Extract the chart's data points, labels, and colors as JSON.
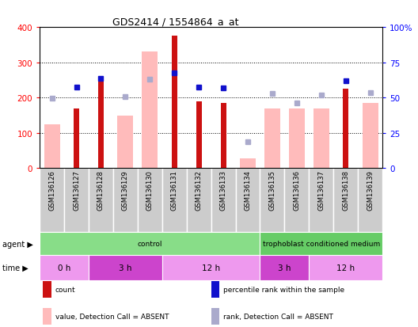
{
  "title": "GDS2414 / 1554864_a_at",
  "samples": [
    "GSM136126",
    "GSM136127",
    "GSM136128",
    "GSM136129",
    "GSM136130",
    "GSM136131",
    "GSM136132",
    "GSM136133",
    "GSM136134",
    "GSM136135",
    "GSM136136",
    "GSM136137",
    "GSM136138",
    "GSM136139"
  ],
  "count": [
    null,
    170,
    260,
    null,
    null,
    375,
    190,
    185,
    null,
    null,
    null,
    null,
    225,
    null
  ],
  "count_absent": [
    125,
    null,
    null,
    150,
    330,
    null,
    null,
    null,
    28,
    170,
    170,
    170,
    null,
    185
  ],
  "prank_present": [
    null,
    230,
    255,
    null,
    null,
    270,
    230,
    228,
    null,
    null,
    null,
    null,
    248,
    null
  ],
  "prank_absent": [
    198,
    null,
    null,
    202,
    253,
    null,
    null,
    null,
    75,
    212,
    185,
    207,
    null,
    215
  ],
  "ylim": [
    0,
    400
  ],
  "yticks": [
    0,
    100,
    200,
    300,
    400
  ],
  "ytick_labels": [
    "0",
    "100",
    "200",
    "300",
    "400"
  ],
  "y2ticks": [
    0,
    25,
    50,
    75,
    100
  ],
  "y2tick_labels": [
    "0",
    "25",
    "50",
    "75",
    "100%"
  ],
  "color_count": "#cc1111",
  "color_count_absent": "#ffbbbb",
  "color_rank": "#1111cc",
  "color_rank_absent": "#aaaacc",
  "bg_color": "#cccccc",
  "plot_bg": "#ffffff",
  "agent_groups": [
    {
      "label": "control",
      "start": 0,
      "end": 9,
      "color": "#88dd88"
    },
    {
      "label": "trophoblast conditioned medium",
      "start": 9,
      "end": 14,
      "color": "#66cc66"
    }
  ],
  "time_groups": [
    {
      "label": "0 h",
      "start": 0,
      "end": 2,
      "color": "#ee99ee"
    },
    {
      "label": "3 h",
      "start": 2,
      "end": 5,
      "color": "#cc44cc"
    },
    {
      "label": "12 h",
      "start": 5,
      "end": 9,
      "color": "#ee99ee"
    },
    {
      "label": "3 h",
      "start": 9,
      "end": 11,
      "color": "#cc44cc"
    },
    {
      "label": "12 h",
      "start": 11,
      "end": 14,
      "color": "#ee99ee"
    }
  ],
  "legend_items": [
    {
      "label": "count",
      "color": "#cc1111"
    },
    {
      "label": "percentile rank within the sample",
      "color": "#1111cc"
    },
    {
      "label": "value, Detection Call = ABSENT",
      "color": "#ffbbbb"
    },
    {
      "label": "rank, Detection Call = ABSENT",
      "color": "#aaaacc"
    }
  ]
}
